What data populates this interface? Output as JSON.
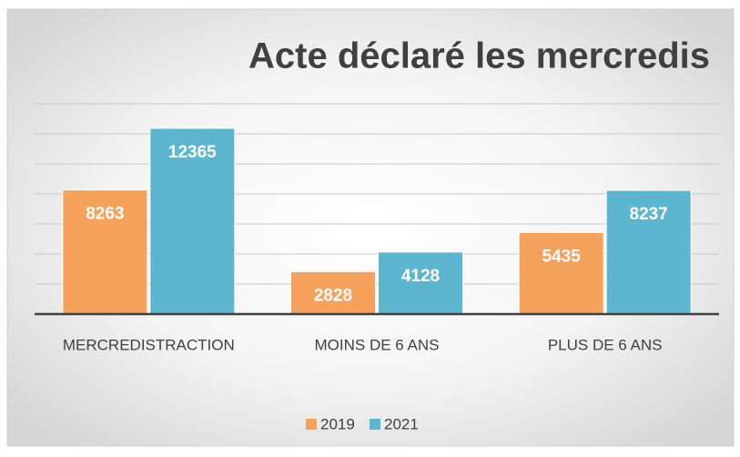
{
  "chart_data": {
    "type": "bar",
    "title": "Acte déclaré les mercredis",
    "categories": [
      "MERCREDISTRACTION",
      "MOINS DE 6 ANS",
      "PLUS DE 6 ANS"
    ],
    "series": [
      {
        "name": "2019",
        "color": "#f6a15c",
        "values": [
          8263,
          2828,
          5435
        ]
      },
      {
        "name": "2021",
        "color": "#5db6d0",
        "values": [
          12365,
          4128,
          8237
        ]
      }
    ],
    "ylim": [
      0,
      14000
    ],
    "yticks": [
      0,
      2000,
      4000,
      6000,
      8000,
      10000,
      12000,
      14000
    ],
    "grid": true,
    "legend": "bottom"
  }
}
